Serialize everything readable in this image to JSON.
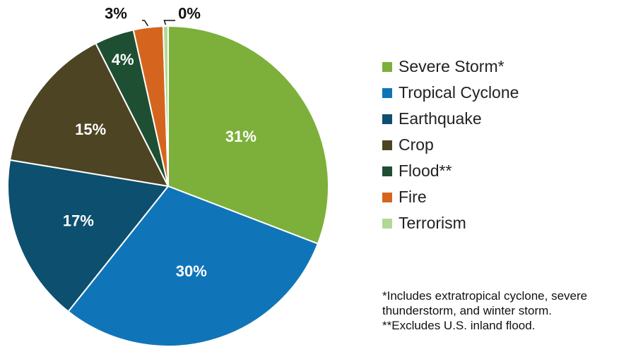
{
  "chart_data": {
    "type": "pie",
    "categories": [
      "Severe Storm*",
      "Tropical Cyclone",
      "Earthquake",
      "Crop",
      "Flood**",
      "Fire",
      "Terrorism"
    ],
    "values": [
      31,
      30,
      17,
      15,
      4,
      3,
      0.5
    ],
    "data_labels": [
      "31%",
      "30%",
      "17%",
      "15%",
      "4%",
      "3%",
      "0%"
    ],
    "colors": [
      "#7cb03b",
      "#0f75b8",
      "#0d4f6e",
      "#4d4424",
      "#1f4f33",
      "#d5651e",
      "#b3d895"
    ],
    "label_color_inside": "#ffffff",
    "label_color_outside": "#111111",
    "legend_position": "right",
    "start_direction": "clockwise-from-top"
  },
  "footnotes": [
    "*Includes extratropical cyclone, severe",
    "thunderstorm, and winter storm.",
    "**Excludes U.S. inland flood."
  ]
}
